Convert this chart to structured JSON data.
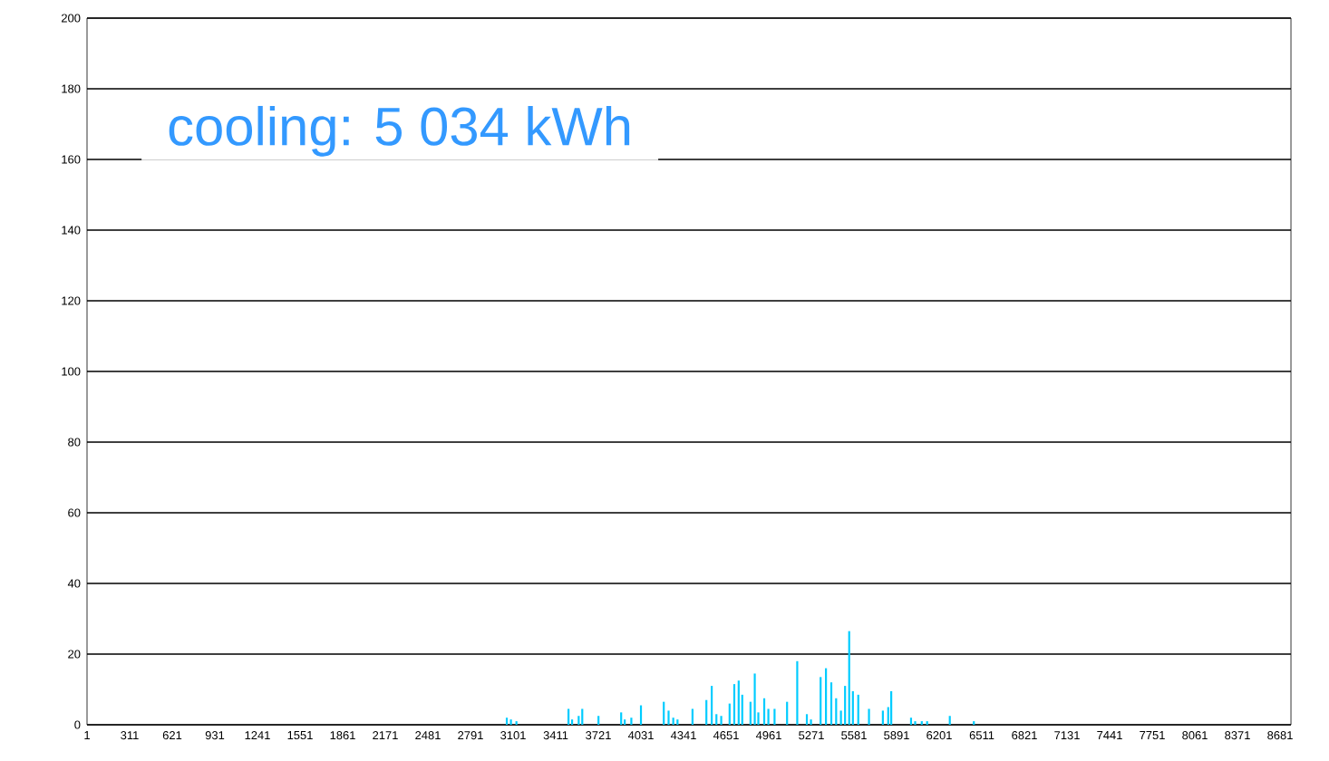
{
  "chart_data": {
    "type": "bar",
    "color": "#00ccff",
    "x": [
      3055,
      3085,
      3125,
      3504,
      3530,
      3578,
      3604,
      3722,
      3887,
      3913,
      3961,
      4031,
      4197,
      4232,
      4266,
      4297,
      4406,
      4507,
      4546,
      4580,
      4615,
      4676,
      4710,
      4742,
      4768,
      4828,
      4859,
      4885,
      4928,
      4958,
      5003,
      5094,
      5168,
      5238,
      5268,
      5338,
      5377,
      5416,
      5451,
      5486,
      5516,
      5546,
      5573,
      5612,
      5690,
      5791,
      5830,
      5852,
      5996,
      6026,
      6074,
      6113,
      6278,
      6453
    ],
    "values": [
      2,
      1.5,
      1,
      4.5,
      1.5,
      2.5,
      4.5,
      2.5,
      3.5,
      1.5,
      2,
      5.5,
      6.5,
      4,
      2,
      1.5,
      4.5,
      7,
      11,
      3,
      2.5,
      6,
      11.5,
      12.5,
      8.5,
      6.5,
      14.5,
      3.5,
      7.5,
      4.5,
      4.5,
      6.5,
      18,
      3,
      1.5,
      13.5,
      16,
      12,
      7.5,
      4,
      11,
      26.5,
      9.5,
      8.5,
      4.5,
      4,
      5,
      9.5,
      2,
      1,
      1,
      1,
      2.5,
      1
    ],
    "xlim": [
      1,
      8760
    ],
    "xticks": [
      1,
      311,
      621,
      931,
      1241,
      1551,
      1861,
      2171,
      2481,
      2791,
      3101,
      3411,
      3721,
      4031,
      4341,
      4651,
      4961,
      5271,
      5581,
      5891,
      6201,
      6511,
      6821,
      7131,
      7441,
      7751,
      8061,
      8371,
      8681
    ],
    "ylim": [
      0,
      200
    ],
    "yticks": [
      0,
      20,
      40,
      60,
      80,
      100,
      120,
      140,
      160,
      180,
      200
    ],
    "grid": "y",
    "annotations": [
      "cooling: 5 034 kWh"
    ]
  }
}
